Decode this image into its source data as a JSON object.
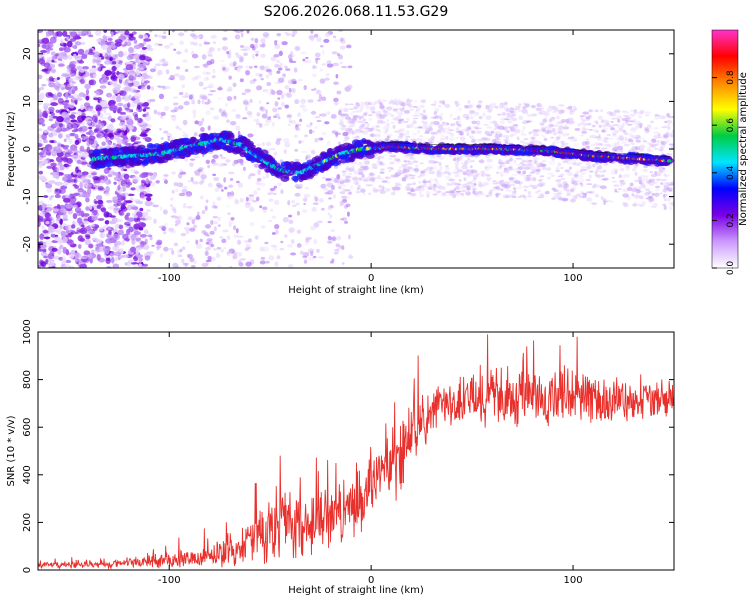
{
  "title": "S206.2026.068.11.53.G29",
  "chart_data": [
    {
      "type": "heatmap",
      "name": "spectrogram",
      "xlabel": "Height of straight line (km)",
      "ylabel": "Frequency (Hz)",
      "xlim": [
        -165,
        150
      ],
      "ylim": [
        -25,
        25
      ],
      "xticks": [
        -100,
        0,
        100
      ],
      "xtick_labels": [
        "-100",
        "0",
        "100"
      ],
      "yticks": [
        20,
        10,
        0,
        -10,
        -20
      ],
      "ytick_labels": [
        "20",
        "10",
        "0",
        "-10",
        "-20"
      ],
      "ridge": [
        {
          "x": -135,
          "y": -2
        },
        {
          "x": -120,
          "y": -1.5
        },
        {
          "x": -105,
          "y": -1
        },
        {
          "x": -95,
          "y": 0
        },
        {
          "x": -85,
          "y": 1
        },
        {
          "x": -75,
          "y": 2
        },
        {
          "x": -65,
          "y": 1
        },
        {
          "x": -55,
          "y": -2
        },
        {
          "x": -45,
          "y": -4.5
        },
        {
          "x": -35,
          "y": -5
        },
        {
          "x": -25,
          "y": -3
        },
        {
          "x": -15,
          "y": -1
        },
        {
          "x": -5,
          "y": 0
        },
        {
          "x": 10,
          "y": 0.5
        },
        {
          "x": 30,
          "y": 0
        },
        {
          "x": 60,
          "y": 0
        },
        {
          "x": 90,
          "y": -0.5
        },
        {
          "x": 110,
          "y": -1.5
        },
        {
          "x": 130,
          "y": -2
        },
        {
          "x": 148,
          "y": -2.5
        }
      ],
      "colorbar": {
        "label": "Normalized spectral amplitude",
        "range": [
          0,
          1
        ],
        "ticks": [
          0.0,
          0.2,
          0.4,
          0.6,
          0.8
        ],
        "tick_labels": [
          "0.0",
          "0.2",
          "0.4",
          "0.6",
          "0.8"
        ],
        "colors": [
          "#ffffff",
          "#cc99ff",
          "#7a00e6",
          "#0000ff",
          "#00e5ff",
          "#00cc44",
          "#ffff00",
          "#ff8800",
          "#ff0000",
          "#ff33cc"
        ]
      }
    },
    {
      "type": "line",
      "name": "snr",
      "xlabel": "Height of straight line (km)",
      "ylabel": "SNR (10 * v/v)",
      "xlim": [
        -165,
        150
      ],
      "ylim": [
        0,
        1000
      ],
      "xticks": [
        -100,
        0,
        100
      ],
      "xtick_labels": [
        "-100",
        "0",
        "100"
      ],
      "yticks": [
        0,
        200,
        400,
        600,
        800,
        1000
      ],
      "ytick_labels": [
        "0",
        "200",
        "400",
        "600",
        "800",
        "1000"
      ],
      "color": "#e8302c",
      "envelope": [
        {
          "x": -165,
          "mean": 20,
          "amp": 15
        },
        {
          "x": -130,
          "mean": 25,
          "amp": 20
        },
        {
          "x": -100,
          "mean": 40,
          "amp": 40
        },
        {
          "x": -80,
          "mean": 60,
          "amp": 60
        },
        {
          "x": -65,
          "mean": 100,
          "amp": 100
        },
        {
          "x": -45,
          "mean": 190,
          "amp": 180
        },
        {
          "x": -30,
          "mean": 180,
          "amp": 150
        },
        {
          "x": -15,
          "mean": 230,
          "amp": 150
        },
        {
          "x": -5,
          "mean": 300,
          "amp": 150
        },
        {
          "x": 5,
          "mean": 420,
          "amp": 120
        },
        {
          "x": 15,
          "mean": 480,
          "amp": 200
        },
        {
          "x": 22,
          "mean": 600,
          "amp": 150
        },
        {
          "x": 35,
          "mean": 700,
          "amp": 100
        },
        {
          "x": 60,
          "mean": 730,
          "amp": 150
        },
        {
          "x": 90,
          "mean": 720,
          "amp": 160
        },
        {
          "x": 120,
          "mean": 700,
          "amp": 100
        },
        {
          "x": 150,
          "mean": 720,
          "amp": 80
        }
      ]
    }
  ]
}
